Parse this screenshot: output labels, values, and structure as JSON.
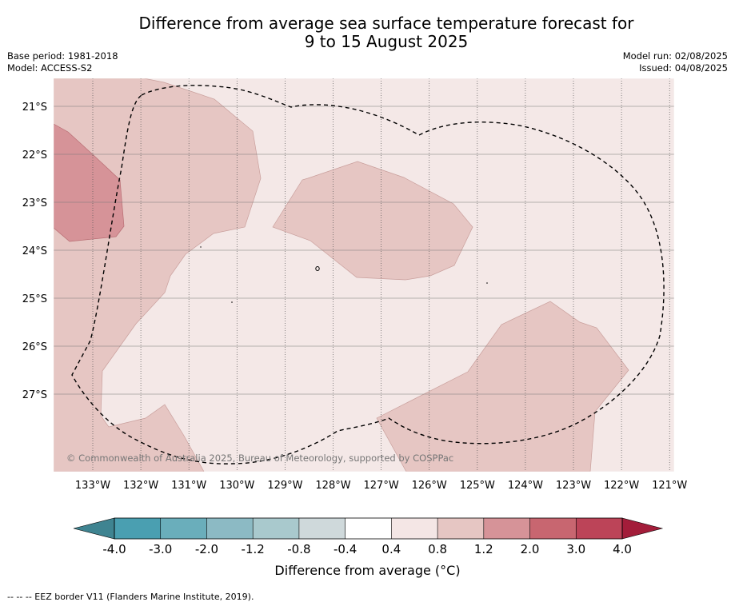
{
  "title_line1": "Difference from average sea surface temperature forecast for",
  "title_line2": "9 to 15 August 2025",
  "base_period": "Base period: 1981-2018",
  "model": "Model: ACCESS-S2",
  "model_run": "Model run: 02/08/2025",
  "issued": "Issued: 04/08/2025",
  "copyright": "© Commonwealth of Australia 2025, Bureau of Meteorology, supported by COSPPac",
  "lat_labels": [
    "21°S",
    "22°S",
    "23°S",
    "24°S",
    "25°S",
    "26°S",
    "27°S"
  ],
  "lon_labels": [
    "133°W",
    "132°W",
    "131°W",
    "130°W",
    "129°W",
    "128°W",
    "127°W",
    "126°W",
    "125°W",
    "124°W",
    "123°W",
    "122°W",
    "121°W"
  ],
  "colorbar": {
    "label": "Difference from average (°C)",
    "tick_labels": [
      "-4.0",
      "-3.0",
      "-2.0",
      "-1.2",
      "-0.8",
      "-0.4",
      "0.4",
      "0.8",
      "1.2",
      "2.0",
      "3.0",
      "4.0"
    ],
    "colors": [
      "#4a9fb1",
      "#6aaebb",
      "#8cbac4",
      "#a9c9cd",
      "#cfd9db",
      "#ffffff",
      "#f4e6e5",
      "#e6c6c3",
      "#d69398",
      "#c86670",
      "#bc4458"
    ],
    "extend_low_color": "#3f8491",
    "extend_high_color": "#a31d3a"
  },
  "fill_colors": {
    "background": "#f4e8e7",
    "light": "#e6c6c3",
    "medium": "#d69398"
  },
  "footer": "--  --  -- EEZ border V11 (Flanders Marine Institute, 2019)."
}
